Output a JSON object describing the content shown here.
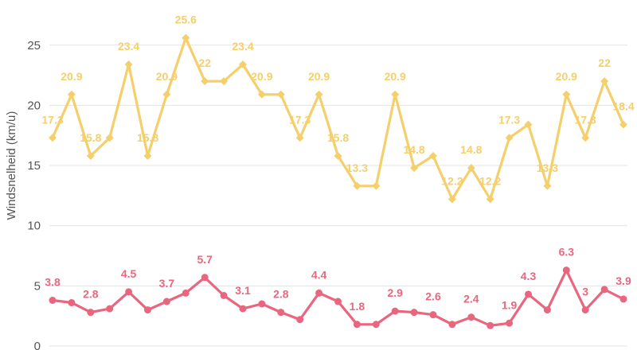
{
  "chart_data": {
    "type": "line",
    "ylabel": "Windsnelheid (km/u)",
    "ylim": [
      0,
      27
    ],
    "yticks": [
      0,
      5,
      10,
      15,
      20,
      25
    ],
    "grid": true,
    "series": [
      {
        "color": "#f4cf6b",
        "marker": "diamond",
        "values": [
          17.3,
          20.9,
          15.8,
          17.3,
          23.4,
          15.8,
          20.9,
          25.6,
          22,
          22,
          23.4,
          20.9,
          20.9,
          17.3,
          20.9,
          15.8,
          13.3,
          13.3,
          20.9,
          14.8,
          15.8,
          12.2,
          14.8,
          12.2,
          17.3,
          18.4,
          13.3,
          20.9,
          17.3,
          22,
          18.4
        ],
        "labeled_indices": [
          0,
          1,
          2,
          4,
          5,
          6,
          7,
          8,
          10,
          11,
          13,
          14,
          15,
          16,
          18,
          19,
          21,
          22,
          23,
          24,
          26,
          27,
          28,
          29,
          30
        ]
      },
      {
        "color": "#e8677f",
        "marker": "circle",
        "values": [
          3.8,
          3.6,
          2.8,
          3.1,
          4.5,
          3.0,
          3.7,
          4.4,
          5.7,
          4.2,
          3.1,
          3.5,
          2.8,
          2.2,
          4.4,
          3.7,
          1.8,
          1.8,
          2.9,
          2.8,
          2.6,
          1.8,
          2.4,
          1.7,
          1.9,
          4.3,
          3.0,
          6.3,
          3.0,
          4.7,
          3.9
        ],
        "labeled_indices": [
          0,
          2,
          4,
          6,
          8,
          10,
          12,
          14,
          16,
          18,
          20,
          22,
          24,
          25,
          27,
          28,
          30
        ]
      }
    ]
  }
}
